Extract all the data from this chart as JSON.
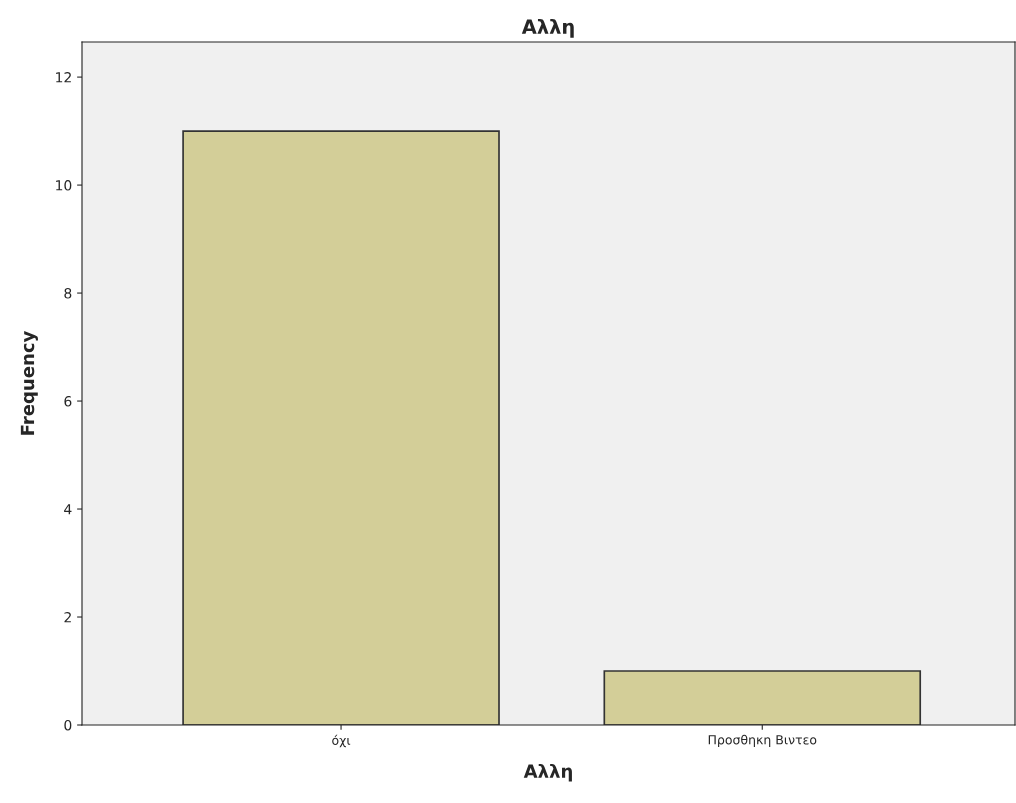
{
  "chart_data": {
    "type": "bar",
    "title": "Αλλη",
    "xlabel": "Αλλη",
    "ylabel": "Frequency",
    "categories": [
      "όχι",
      "Προσθηκη Βιντεο"
    ],
    "values": [
      11,
      1
    ],
    "color": "#d3ce98",
    "ylim": [
      0,
      12.65
    ],
    "yticks": [
      0,
      2,
      4,
      6,
      8,
      10,
      12
    ],
    "grid": false,
    "legend": false
  }
}
